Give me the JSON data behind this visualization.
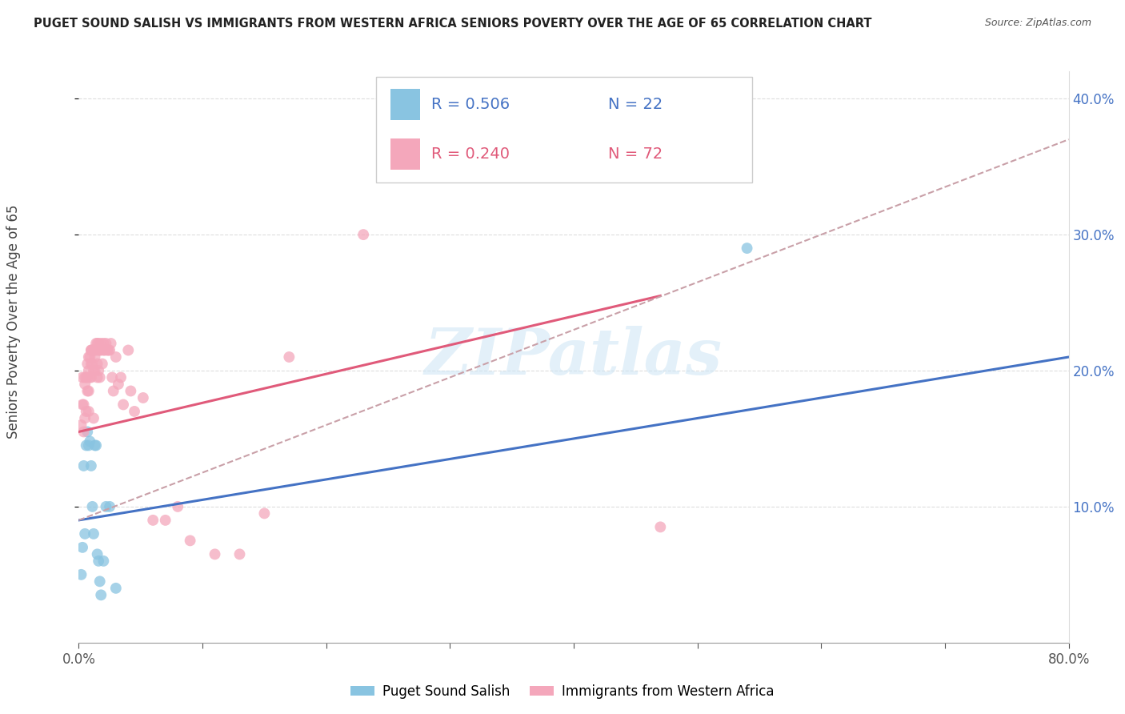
{
  "title": "PUGET SOUND SALISH VS IMMIGRANTS FROM WESTERN AFRICA SENIORS POVERTY OVER THE AGE OF 65 CORRELATION CHART",
  "source": "Source: ZipAtlas.com",
  "ylabel": "Seniors Poverty Over the Age of 65",
  "xmin": 0.0,
  "xmax": 0.8,
  "ymin": 0.0,
  "ymax": 0.42,
  "yticks": [
    0.1,
    0.2,
    0.3,
    0.4
  ],
  "xtick_positions": [
    0.0,
    0.1,
    0.2,
    0.3,
    0.4,
    0.5,
    0.6,
    0.7,
    0.8
  ],
  "blue_color": "#89c4e1",
  "pink_color": "#f4a7bb",
  "blue_line_color": "#4472c4",
  "pink_line_color": "#e05a7a",
  "pink_dash_color": "#c9a0a8",
  "watermark": "ZIPatlas",
  "legend_R_blue": "R = 0.506",
  "legend_N_blue": "N = 22",
  "legend_R_pink": "R = 0.240",
  "legend_N_pink": "N = 72",
  "label_blue": "Puget Sound Salish",
  "label_pink": "Immigrants from Western Africa",
  "blue_scatter_x": [
    0.002,
    0.003,
    0.004,
    0.005,
    0.006,
    0.007,
    0.008,
    0.009,
    0.01,
    0.011,
    0.012,
    0.013,
    0.014,
    0.015,
    0.016,
    0.017,
    0.018,
    0.02,
    0.022,
    0.025,
    0.03,
    0.54
  ],
  "blue_scatter_y": [
    0.05,
    0.07,
    0.13,
    0.08,
    0.145,
    0.155,
    0.145,
    0.148,
    0.13,
    0.1,
    0.08,
    0.145,
    0.145,
    0.065,
    0.06,
    0.045,
    0.035,
    0.06,
    0.1,
    0.1,
    0.04,
    0.29
  ],
  "pink_scatter_x": [
    0.002,
    0.003,
    0.003,
    0.004,
    0.004,
    0.005,
    0.005,
    0.005,
    0.006,
    0.006,
    0.007,
    0.007,
    0.007,
    0.008,
    0.008,
    0.008,
    0.008,
    0.009,
    0.009,
    0.01,
    0.01,
    0.01,
    0.01,
    0.011,
    0.011,
    0.012,
    0.012,
    0.012,
    0.013,
    0.013,
    0.013,
    0.014,
    0.014,
    0.015,
    0.015,
    0.015,
    0.016,
    0.016,
    0.016,
    0.017,
    0.017,
    0.018,
    0.018,
    0.019,
    0.02,
    0.02,
    0.021,
    0.022,
    0.023,
    0.024,
    0.025,
    0.026,
    0.027,
    0.028,
    0.03,
    0.032,
    0.034,
    0.036,
    0.04,
    0.042,
    0.045,
    0.052,
    0.06,
    0.07,
    0.08,
    0.09,
    0.11,
    0.13,
    0.15,
    0.17,
    0.23,
    0.47
  ],
  "pink_scatter_y": [
    0.16,
    0.175,
    0.195,
    0.155,
    0.175,
    0.165,
    0.19,
    0.195,
    0.17,
    0.195,
    0.185,
    0.195,
    0.205,
    0.17,
    0.185,
    0.2,
    0.21,
    0.195,
    0.21,
    0.195,
    0.205,
    0.215,
    0.215,
    0.205,
    0.215,
    0.165,
    0.2,
    0.215,
    0.2,
    0.21,
    0.215,
    0.215,
    0.22,
    0.195,
    0.205,
    0.22,
    0.2,
    0.215,
    0.22,
    0.195,
    0.215,
    0.215,
    0.22,
    0.205,
    0.215,
    0.22,
    0.215,
    0.22,
    0.215,
    0.215,
    0.215,
    0.22,
    0.195,
    0.185,
    0.21,
    0.19,
    0.195,
    0.175,
    0.215,
    0.185,
    0.17,
    0.18,
    0.09,
    0.09,
    0.1,
    0.075,
    0.065,
    0.065,
    0.095,
    0.21,
    0.3,
    0.085
  ],
  "blue_trend_x": [
    0.0,
    0.8
  ],
  "blue_trend_y": [
    0.09,
    0.21
  ],
  "pink_solid_trend_x": [
    0.0,
    0.47
  ],
  "pink_solid_trend_y": [
    0.155,
    0.255
  ],
  "pink_dash_trend_x": [
    0.0,
    0.8
  ],
  "pink_dash_trend_y": [
    0.09,
    0.37
  ]
}
